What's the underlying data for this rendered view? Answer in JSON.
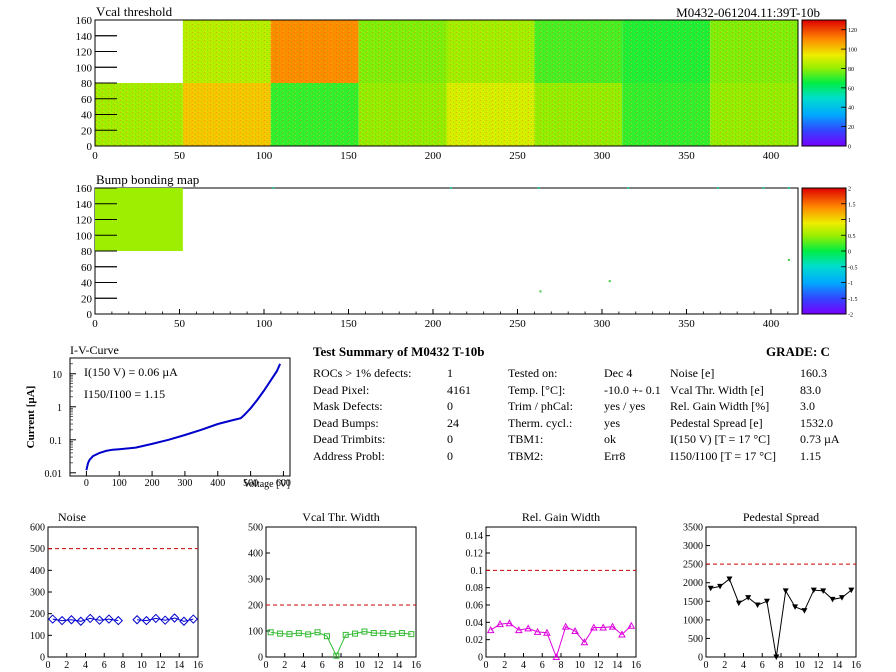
{
  "run_tag": "M0432-061204.11:39T-10b",
  "summary": {
    "title": "Test Summary of M0432     T-10b",
    "grade": "GRADE:  C",
    "col1": [
      {
        "label": "ROCs > 1% defects:",
        "value": "1"
      },
      {
        "label": "Dead Pixel:",
        "value": "4161"
      },
      {
        "label": "Mask Defects:",
        "value": "0"
      },
      {
        "label": "Dead Bumps:",
        "value": "24"
      },
      {
        "label": "Dead Trimbits:",
        "value": "0"
      },
      {
        "label": "Address Probl:",
        "value": "0"
      }
    ],
    "col2": [
      {
        "label": "Tested on:",
        "value": "Dec 4"
      },
      {
        "label": "Temp. [°C]:",
        "value": "-10.0 +- 0.1"
      },
      {
        "label": "Trim / phCal:",
        "value": "yes / yes"
      },
      {
        "label": "Therm. cycl.:",
        "value": "yes"
      },
      {
        "label": "TBM1:",
        "value": "ok"
      },
      {
        "label": "TBM2:",
        "value": "Err8"
      }
    ],
    "col3": [
      {
        "label": "Noise [e]",
        "value": "160.3"
      },
      {
        "label": "Vcal Thr. Width [e]",
        "value": "83.0"
      },
      {
        "label": "Rel. Gain Width [%]",
        "value": "3.0"
      },
      {
        "label": "Pedestal Spread [e]",
        "value": "1532.0"
      },
      {
        "label": "I(150 V)  [T = 17 °C]",
        "value": "0.73 µA"
      },
      {
        "label": "I150/I100  [T = 17 °C]",
        "value": "1.15"
      }
    ]
  },
  "chart_data": [
    {
      "type": "heatmap",
      "title": "Vcal threshold",
      "xlim": [
        0,
        416
      ],
      "ylim": [
        0,
        160
      ],
      "xticks": [
        0,
        50,
        100,
        150,
        200,
        250,
        300,
        350,
        400
      ],
      "yticks": [
        0,
        20,
        40,
        60,
        80,
        100,
        120,
        140,
        160
      ],
      "zlim": [
        0,
        130
      ],
      "zticks": [
        0,
        20,
        40,
        60,
        80,
        100,
        120
      ],
      "roc_mean_top": [
        null,
        85,
        110,
        78,
        82,
        72,
        68,
        78
      ],
      "roc_mean_bottom": [
        82,
        100,
        70,
        80,
        90,
        80,
        70,
        80
      ],
      "colors": {
        "low": "#7700ff",
        "mid": "#00dd22",
        "high": "#dd0000"
      }
    },
    {
      "type": "heatmap",
      "title": "Bump bonding map",
      "xlim": [
        0,
        416
      ],
      "ylim": [
        0,
        160
      ],
      "xticks": [
        0,
        50,
        100,
        150,
        200,
        250,
        300,
        350,
        400
      ],
      "yticks": [
        0,
        20,
        40,
        60,
        80,
        100,
        120,
        140,
        160
      ],
      "zlim": [
        -2,
        2
      ],
      "zticks": [
        -2,
        -1.5,
        -1,
        -0.5,
        0,
        0.5,
        1,
        1.5,
        2
      ],
      "dead_region": {
        "x": [
          0,
          52
        ],
        "y": [
          80,
          160
        ],
        "z": 0.5
      }
    },
    {
      "type": "line",
      "title": "I-V-Curve",
      "xlabel": "Voltage [V]",
      "ylabel": "Current [µA]",
      "xlim": [
        -50,
        620
      ],
      "ylog": true,
      "ylim": [
        0.008,
        30
      ],
      "xticks": [
        0,
        100,
        200,
        300,
        400,
        500,
        600
      ],
      "yticks": [
        0.01,
        0.1,
        1,
        10
      ],
      "annotations": [
        "I(150 V) = 0.06 µA",
        "I150/I100 =  1.15"
      ],
      "x": [
        0,
        2,
        5,
        10,
        20,
        40,
        60,
        80,
        100,
        150,
        200,
        250,
        300,
        350,
        400,
        440,
        470,
        480,
        500,
        520,
        540,
        560,
        580,
        590
      ],
      "y": [
        0.012,
        0.015,
        0.02,
        0.025,
        0.032,
        0.04,
        0.046,
        0.05,
        0.052,
        0.058,
        0.075,
        0.1,
        0.14,
        0.2,
        0.3,
        0.38,
        0.45,
        0.55,
        0.9,
        1.6,
        3,
        6,
        12,
        20
      ]
    },
    {
      "type": "line",
      "title": "Noise",
      "xlim": [
        0,
        16
      ],
      "ylim": [
        0,
        600
      ],
      "xticks": [
        0,
        2,
        4,
        6,
        8,
        10,
        12,
        14,
        16
      ],
      "yticks": [
        0,
        100,
        200,
        300,
        400,
        500,
        600
      ],
      "threshold": 500,
      "x": [
        0,
        1,
        2,
        3,
        4,
        5,
        6,
        7,
        9,
        10,
        11,
        12,
        13,
        14,
        15
      ],
      "y": [
        175,
        168,
        172,
        165,
        178,
        170,
        175,
        168,
        172,
        168,
        178,
        170,
        180,
        165,
        175
      ],
      "color": "#0000cc"
    },
    {
      "type": "line",
      "title": "Vcal Thr. Width",
      "xlim": [
        0,
        16
      ],
      "ylim": [
        0,
        500
      ],
      "xticks": [
        0,
        2,
        4,
        6,
        8,
        10,
        12,
        14,
        16
      ],
      "yticks": [
        0,
        100,
        200,
        300,
        400,
        500
      ],
      "threshold": 200,
      "x": [
        0,
        1,
        2,
        3,
        4,
        5,
        6,
        7,
        8,
        9,
        10,
        11,
        12,
        13,
        14,
        15
      ],
      "y": [
        95,
        90,
        88,
        92,
        87,
        95,
        80,
        5,
        85,
        90,
        98,
        92,
        92,
        88,
        92,
        88
      ],
      "color": "#33bb33"
    },
    {
      "type": "line",
      "title": "Rel. Gain Width",
      "xlim": [
        0,
        16
      ],
      "ylim": [
        0,
        0.15
      ],
      "xticks": [
        0,
        2,
        4,
        6,
        8,
        10,
        12,
        14,
        16
      ],
      "yticks": [
        0,
        0.02,
        0.04,
        0.06,
        0.08,
        0.1,
        0.12,
        0.14
      ],
      "threshold": 0.1,
      "x": [
        0,
        1,
        2,
        3,
        4,
        5,
        6,
        7,
        8,
        9,
        10,
        11,
        12,
        13,
        14,
        15
      ],
      "y": [
        0.031,
        0.038,
        0.039,
        0.031,
        0.033,
        0.029,
        0.028,
        0.0,
        0.035,
        0.03,
        0.017,
        0.034,
        0.034,
        0.035,
        0.026,
        0.036
      ],
      "color": "#dd00dd"
    },
    {
      "type": "line",
      "title": "Pedestal Spread",
      "xlim": [
        0,
        16
      ],
      "ylim": [
        0,
        3500
      ],
      "xticks": [
        0,
        2,
        4,
        6,
        8,
        10,
        12,
        14,
        16
      ],
      "yticks": [
        0,
        500,
        1000,
        1500,
        2000,
        2500,
        3000,
        3500
      ],
      "threshold": 2500,
      "x": [
        0,
        1,
        2,
        3,
        4,
        5,
        6,
        7,
        8,
        9,
        10,
        11,
        12,
        13,
        14,
        15
      ],
      "y": [
        1850,
        1900,
        2100,
        1450,
        1600,
        1400,
        1500,
        0,
        1780,
        1350,
        1250,
        1800,
        1780,
        1550,
        1600,
        1800
      ],
      "color": "#000000"
    }
  ]
}
